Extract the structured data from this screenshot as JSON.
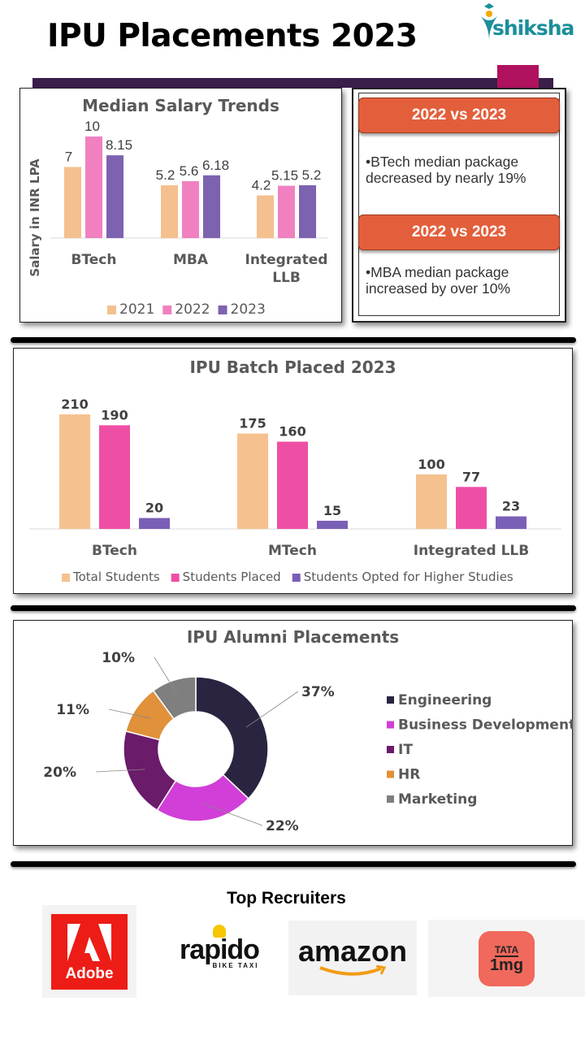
{
  "title": "IPU Placements 2023",
  "brand": {
    "name": "shiksha",
    "color": "#1a8f9a"
  },
  "chart_data": [
    {
      "type": "bar",
      "title": "Median Salary Trends",
      "ylabel": "Salary in INR LPA",
      "xlabel": "",
      "categories": [
        "BTech",
        "MBA",
        "Integrated LLB"
      ],
      "series": [
        {
          "name": "2021",
          "color": "#f4c08e",
          "values": [
            7,
            5.2,
            4.2
          ]
        },
        {
          "name": "2022",
          "color": "#f080c0",
          "values": [
            10,
            5.6,
            5.15
          ]
        },
        {
          "name": "2023",
          "color": "#7d62b0",
          "values": [
            8.15,
            6.18,
            5.2
          ]
        }
      ],
      "data_labels": [
        [
          "7",
          "5.2",
          "4.2"
        ],
        [
          "10",
          "5.6",
          "5.15"
        ],
        [
          "8.15",
          "6.18",
          "5.2"
        ]
      ],
      "ylim": [
        0,
        10
      ],
      "grid": false,
      "legend": "bottom"
    },
    {
      "type": "bar",
      "title": "IPU Batch Placed 2023",
      "xlabel": "",
      "ylabel": "",
      "categories": [
        "BTech",
        "MTech",
        "Integrated LLB"
      ],
      "series": [
        {
          "name": "Total Students",
          "color": "#f5c28f",
          "values": [
            210,
            175,
            100
          ]
        },
        {
          "name": "Students Placed",
          "color": "#ee4fa4",
          "values": [
            190,
            160,
            77
          ]
        },
        {
          "name": "Students Opted for Higher Studies",
          "color": "#7a5fb6",
          "values": [
            20,
            15,
            23
          ]
        }
      ],
      "data_labels": [
        [
          "210",
          "175",
          "100"
        ],
        [
          "190",
          "160",
          "77"
        ],
        [
          "20",
          "15",
          "23"
        ]
      ],
      "ylim": [
        0,
        210
      ],
      "grid": false,
      "legend": "bottom"
    },
    {
      "type": "pie",
      "title": "IPU Alumni Placements",
      "donut": true,
      "categories": [
        "Engineering",
        "Business Development",
        "IT",
        "HR",
        "Marketing"
      ],
      "values": [
        37,
        22,
        20,
        11,
        10
      ],
      "labels": [
        "37%",
        "22%",
        "20%",
        "11%",
        "10%"
      ],
      "colors": [
        "#2a2440",
        "#d13fd8",
        "#6a1b6a",
        "#e0913a",
        "#7f7f7f"
      ],
      "legend": "right"
    }
  ],
  "insights": [
    {
      "header": "2022 vs 2023",
      "text": "BTech median package decreased by nearly 19%"
    },
    {
      "header": "2022 vs 2023",
      "text": "MBA median package increased by over 10%"
    }
  ],
  "recruiters": {
    "title": "Top Recruiters",
    "logos": [
      "Adobe",
      "rapido",
      "BIKE TAXI",
      "amazon",
      "TATA",
      "1mg"
    ]
  }
}
